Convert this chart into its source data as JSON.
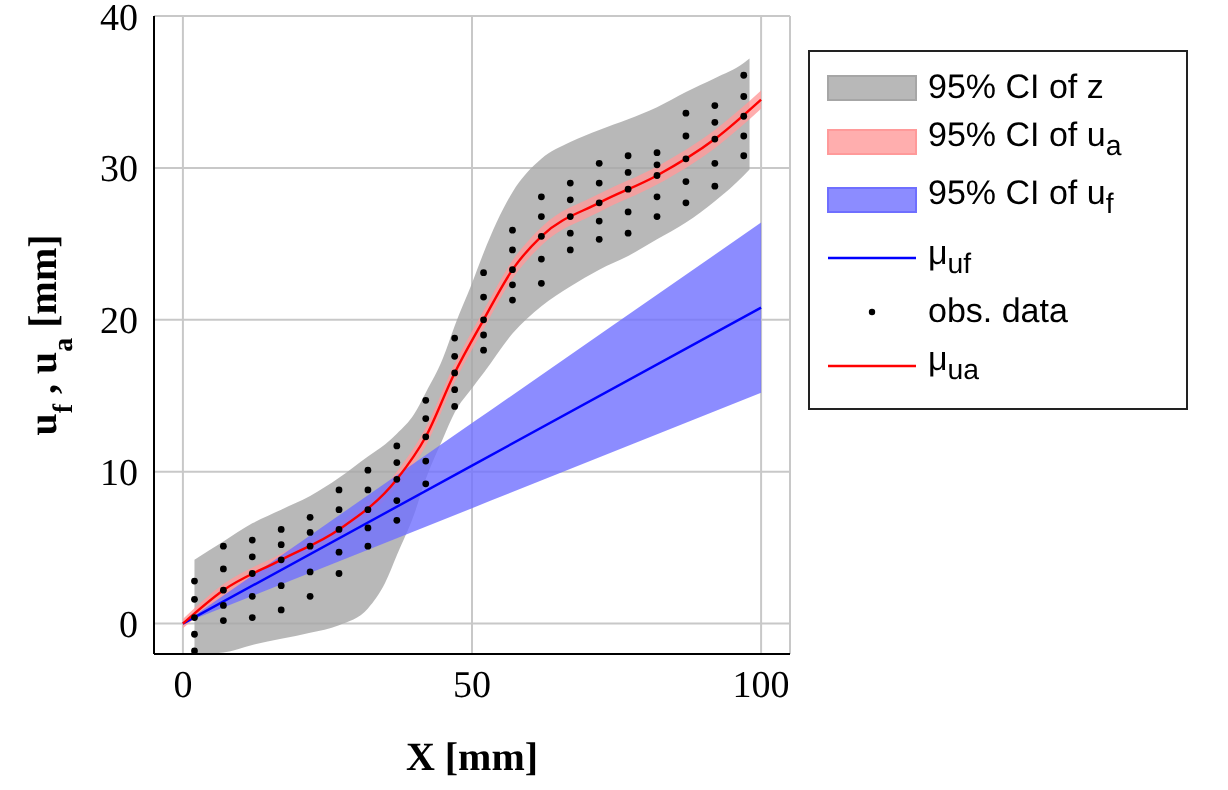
{
  "chart_data": {
    "type": "line",
    "xlabel": "X [mm]",
    "ylabel": "u$_{f}$ , u$_{a}$ [mm]",
    "xlim": [
      -5,
      105
    ],
    "ylim": [
      -2,
      40
    ],
    "xticks": [
      0,
      50,
      100
    ],
    "yticks": [
      0,
      10,
      20,
      30,
      40
    ],
    "grid": true,
    "legend": "right",
    "series": [
      {
        "name": "95% CI of z",
        "type": "area",
        "color": "#a6a6a6",
        "x": [
          2,
          7,
          12,
          17,
          22,
          27,
          32,
          35,
          37,
          40,
          42,
          45,
          47,
          50,
          52,
          57,
          62,
          67,
          72,
          77,
          82,
          87,
          92,
          97,
          98
        ],
        "values": [
          null,
          null,
          null,
          null,
          null,
          null,
          null,
          null,
          null,
          null,
          null,
          null,
          null,
          null,
          null,
          null,
          null,
          null,
          null,
          null,
          null,
          null,
          null,
          null,
          null
        ],
        "lower": [
          -2,
          -1.9,
          -1.4,
          -1.0,
          -0.6,
          -0.1,
          1.0,
          2.7,
          4.5,
          7.2,
          9.5,
          12.2,
          13.9,
          15.5,
          16.5,
          19.1,
          20.9,
          22.2,
          23.3,
          24.2,
          25.3,
          26.4,
          27.8,
          29.5,
          29.9
        ],
        "upper": [
          4.2,
          5.4,
          6.6,
          7.5,
          8.4,
          9.6,
          11.0,
          11.8,
          12.5,
          13.8,
          15.2,
          17.5,
          19.6,
          22.4,
          24.4,
          28.4,
          30.6,
          31.7,
          32.5,
          33.2,
          34.0,
          35.0,
          35.9,
          36.9,
          37.2
        ]
      },
      {
        "name": "95% CI of u$_{a}$",
        "type": "area",
        "color": "#ff9a9a",
        "x": [
          0,
          7,
          17,
          27,
          37,
          42,
          47,
          52,
          57,
          62,
          72,
          82,
          92,
          100
        ],
        "values": [
          null,
          null,
          null,
          null,
          null,
          null,
          null,
          null,
          null,
          null,
          null,
          null,
          null,
          null
        ],
        "lower": [
          -0.3,
          1.8,
          3.8,
          5.8,
          9.0,
          11.7,
          15.9,
          19.4,
          22.7,
          24.9,
          27.1,
          28.9,
          31.3,
          33.9
        ],
        "upper": [
          0.3,
          2.6,
          4.6,
          6.6,
          10.0,
          12.9,
          17.1,
          20.6,
          23.9,
          26.1,
          28.3,
          30.1,
          32.5,
          35.1
        ]
      },
      {
        "name": "95% CI of u$_{f}$",
        "type": "area",
        "color": "#6f6fff",
        "x": [
          0,
          50,
          100
        ],
        "values": [
          null,
          null,
          null
        ],
        "lower": [
          0,
          7.6,
          15.2
        ],
        "upper": [
          0,
          13.2,
          26.4
        ]
      },
      {
        "name": "μ$_{uf}$",
        "color": "#0000ff",
        "x": [
          0,
          50,
          100
        ],
        "values": [
          0,
          10.4,
          20.8
        ]
      },
      {
        "name": "obs. data",
        "type": "scatter",
        "marker": "circle",
        "color": "#000000",
        "x": [
          2,
          2,
          2,
          2,
          2,
          7,
          7,
          7,
          7,
          7,
          12,
          12,
          12,
          12,
          12,
          17,
          17,
          17,
          17,
          17,
          22,
          22,
          22,
          22,
          22,
          27,
          27,
          27,
          27,
          27,
          32,
          32,
          32,
          32,
          32,
          37,
          37,
          37,
          37,
          37,
          42,
          42,
          42,
          42,
          42,
          47,
          47,
          47,
          47,
          47,
          52,
          52,
          52,
          52,
          52,
          57,
          57,
          57,
          57,
          57,
          62,
          62,
          62,
          62,
          62,
          67,
          67,
          67,
          67,
          67,
          72,
          72,
          72,
          72,
          72,
          77,
          77,
          77,
          77,
          77,
          82,
          82,
          82,
          82,
          82,
          87,
          87,
          87,
          87,
          87,
          92,
          92,
          92,
          92,
          92,
          97,
          97,
          97,
          97,
          97
        ],
        "values": [
          -1.8,
          -0.7,
          0.4,
          1.6,
          2.8,
          0.2,
          1.2,
          2.2,
          3.6,
          5.1,
          0.4,
          1.8,
          3.3,
          4.4,
          5.5,
          0.9,
          2.5,
          4.2,
          5.2,
          6.2,
          1.8,
          3.4,
          5.1,
          6.0,
          7.0,
          3.3,
          4.7,
          6.2,
          7.5,
          8.8,
          5.1,
          6.3,
          7.5,
          8.8,
          10.1,
          6.8,
          8.1,
          9.5,
          10.6,
          11.7,
          9.2,
          10.7,
          12.3,
          13.5,
          14.7,
          14.3,
          15.4,
          16.5,
          17.6,
          18.8,
          18.0,
          19.0,
          20.0,
          21.5,
          23.1,
          21.3,
          22.3,
          23.3,
          24.6,
          25.9,
          22.4,
          24.0,
          25.5,
          26.8,
          28.1,
          24.6,
          25.7,
          26.8,
          27.9,
          29.0,
          25.3,
          26.5,
          27.7,
          29.0,
          30.3,
          25.7,
          27.1,
          28.6,
          29.7,
          30.8,
          26.8,
          28.1,
          29.5,
          30.2,
          31.0,
          27.7,
          29.1,
          30.6,
          32.1,
          33.6,
          28.8,
          30.3,
          31.9,
          33.0,
          34.1,
          30.8,
          32.1,
          33.4,
          34.7,
          36.1
        ]
      },
      {
        "name": "μ$_{ua}$",
        "color": "#ff0000",
        "x": [
          0,
          7,
          17,
          27,
          37,
          42,
          47,
          52,
          57,
          62,
          72,
          82,
          92,
          100
        ],
        "values": [
          0,
          2.2,
          4.2,
          6.2,
          9.5,
          12.3,
          16.5,
          20.0,
          23.3,
          25.5,
          27.7,
          29.5,
          31.9,
          34.5
        ]
      }
    ]
  }
}
